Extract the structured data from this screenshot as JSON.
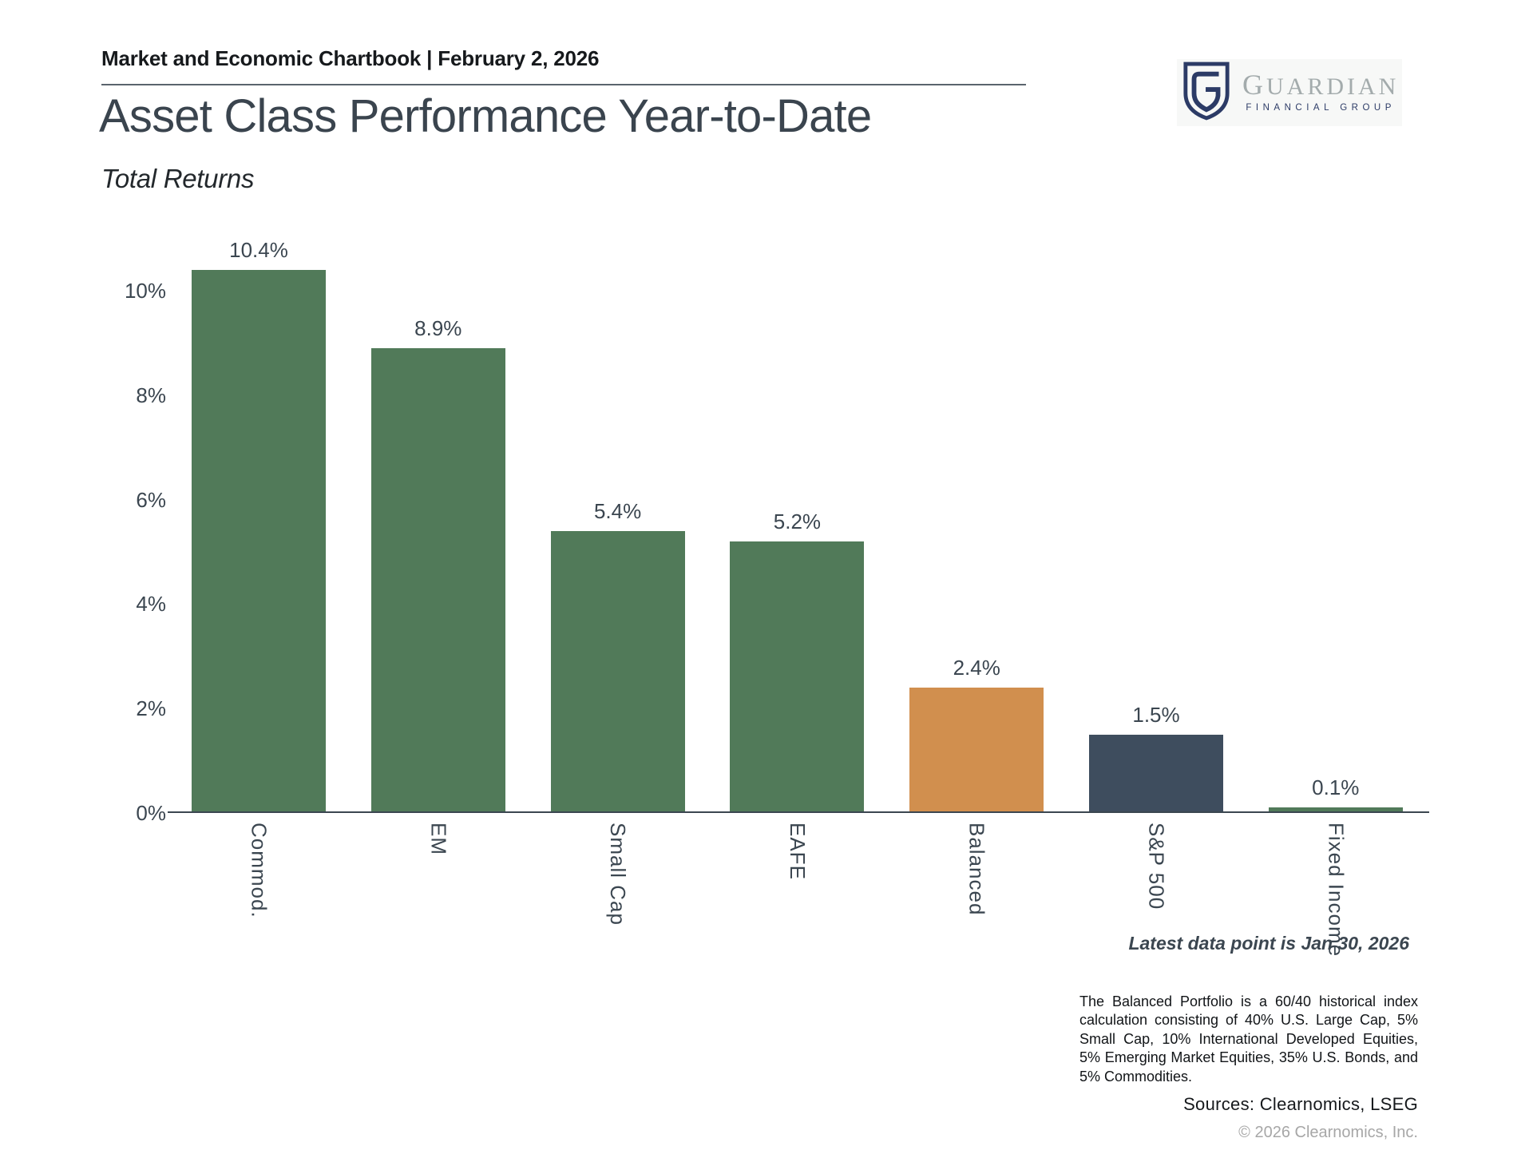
{
  "header": {
    "chartbook_label": "Market and Economic Chartbook | February 2, 2026",
    "title": "Asset Class Performance Year-to-Date",
    "subtitle": "Total Returns"
  },
  "logo": {
    "wordmark": "GUARDIAN",
    "tagline": "FINANCIAL GROUP"
  },
  "palette": {
    "green": "#517a59",
    "orange": "#d18f4e",
    "navy": "#3e4d5e",
    "axis": "#3b4650",
    "title": "#3a444e",
    "logo_navy": "#2c3b66",
    "logo_gray": "#a3abac",
    "copyright_gray": "#a7a7a7"
  },
  "chart_data": {
    "type": "bar",
    "title": "Asset Class Performance Year-to-Date",
    "subtitle": "Total Returns",
    "categories": [
      "Commod.",
      "EM",
      "Small Cap",
      "EAFE",
      "Balanced",
      "S&P 500",
      "Fixed Income"
    ],
    "values": [
      10.4,
      8.9,
      5.4,
      5.2,
      2.4,
      1.5,
      0.1
    ],
    "value_labels": [
      "10.4%",
      "8.9%",
      "5.4%",
      "5.2%",
      "2.4%",
      "1.5%",
      "0.1%"
    ],
    "bar_colors": [
      "green",
      "green",
      "green",
      "green",
      "orange",
      "navy",
      "green"
    ],
    "y_ticks": {
      "labels": [
        "0%",
        "2%",
        "4%",
        "6%",
        "8%",
        "10%"
      ],
      "values": [
        0,
        2,
        4,
        6,
        8,
        10
      ]
    },
    "ylim": [
      0,
      11.0
    ],
    "grid": false,
    "legend": false,
    "annotation": "Latest data point is Jan 30, 2026"
  },
  "footer": {
    "latest_note": "Latest data point is Jan 30, 2026",
    "disclosure": "The Balanced Portfolio is a 60/40 historical index calculation consisting of 40% U.S. Large Cap, 5% Small Cap, 10% International Developed Equities, 5% Emerging Market Equities, 35% U.S. Bonds, and 5% Commodities.",
    "sources": "Sources: Clearnomics, LSEG",
    "copyright": "© 2026 Clearnomics, Inc."
  }
}
